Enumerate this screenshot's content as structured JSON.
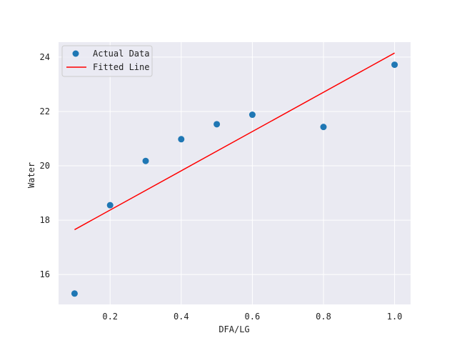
{
  "chart_data": {
    "type": "scatter",
    "title": "",
    "xlabel": "DFA/LG",
    "ylabel": "Water",
    "xlim": [
      0.055,
      1.045
    ],
    "ylim": [
      14.9,
      24.55
    ],
    "xticks": [
      0.2,
      0.4,
      0.6,
      0.8,
      1.0
    ],
    "xtick_labels": [
      "0.2",
      "0.4",
      "0.6",
      "0.8",
      "1.0"
    ],
    "yticks": [
      16,
      18,
      20,
      22,
      24
    ],
    "ytick_labels": [
      "16",
      "18",
      "20",
      "22",
      "24"
    ],
    "grid": true,
    "legend_position": "top-left",
    "series": [
      {
        "name": "Actual Data",
        "kind": "scatter",
        "color": "#1f77b4",
        "x": [
          0.1,
          0.2,
          0.3,
          0.4,
          0.5,
          0.6,
          0.8,
          1.0
        ],
        "y": [
          15.3,
          18.55,
          20.18,
          20.98,
          21.53,
          21.88,
          21.43,
          23.72
        ]
      },
      {
        "name": "Fitted Line",
        "kind": "line",
        "color": "#ff0000",
        "x": [
          0.1,
          1.0
        ],
        "y": [
          17.65,
          24.15
        ]
      }
    ]
  }
}
